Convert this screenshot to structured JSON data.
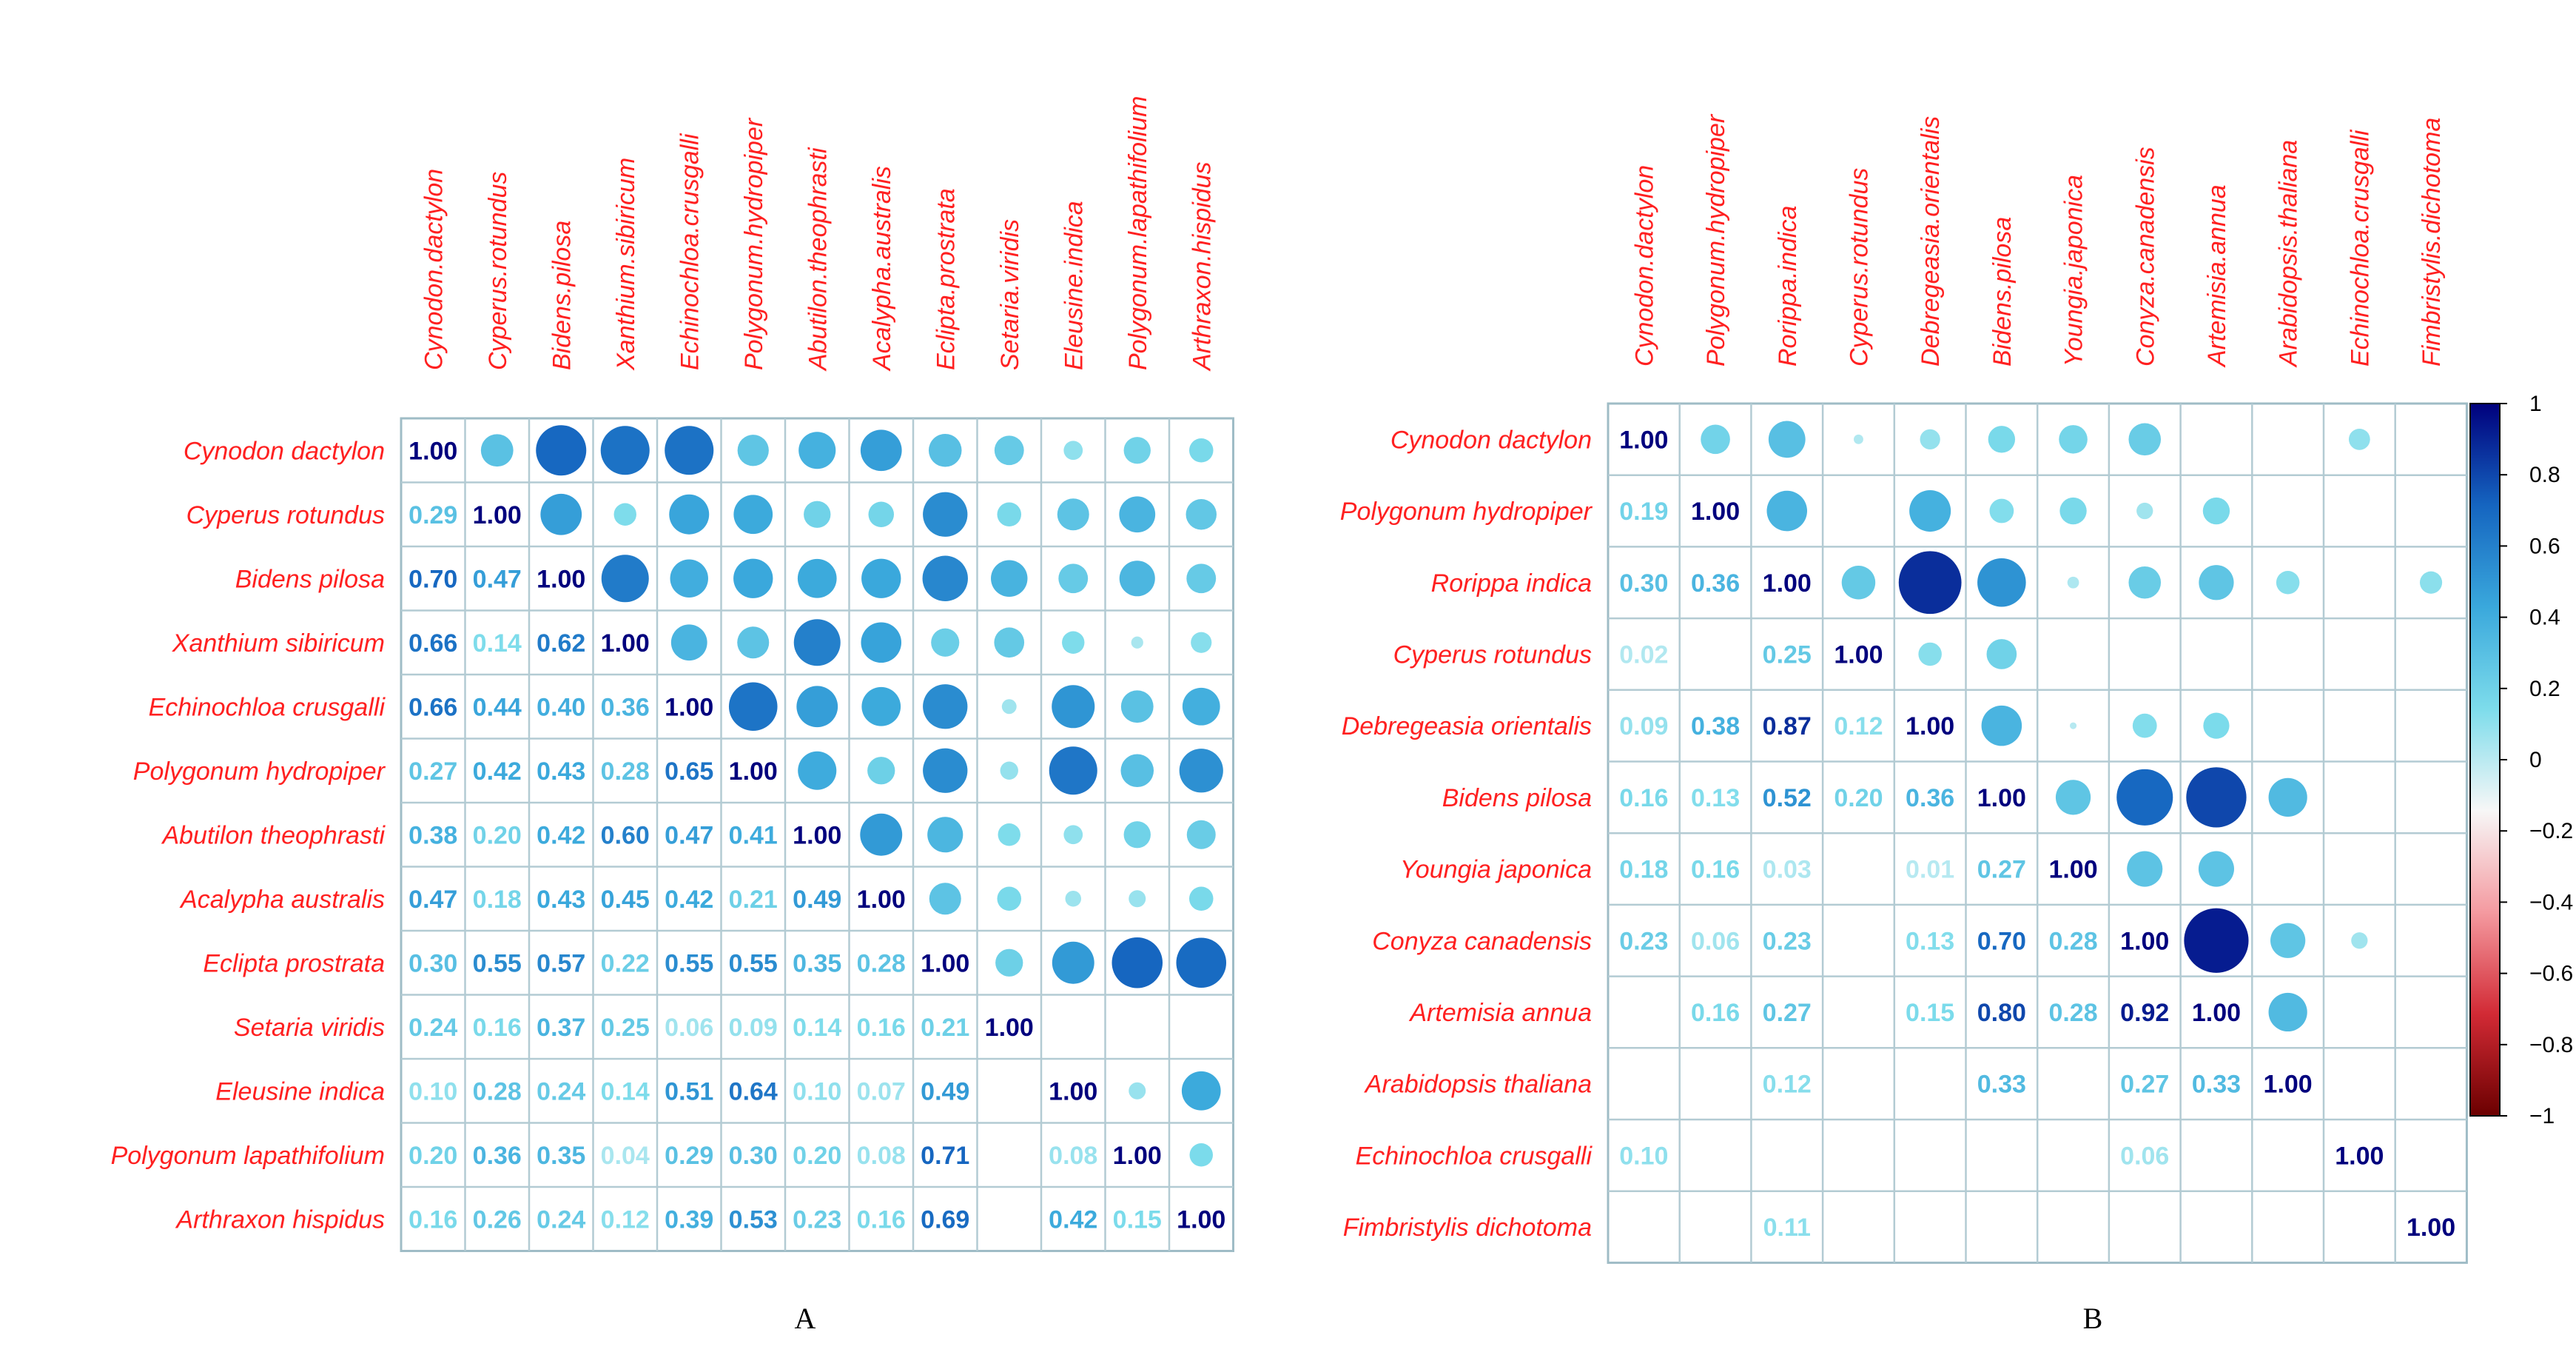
{
  "panels": [
    {
      "caption": "A",
      "labels_top": [
        "Cynodon.dactylon",
        "Cyperus.rotundus",
        "Bidens.pilosa",
        "Xanthium.sibiricum",
        "Echinochloa.crusgalli",
        "Polygonum.hydropiper",
        "Abutilon.theophrasti",
        "Acalypha.australis",
        "Eclipta.prostrata",
        "Setaria.viridis",
        "Eleusine.indica",
        "Polygonum.lapathifolium",
        "Arthraxon.hispidus"
      ],
      "labels_left": [
        "Cynodon dactylon",
        "Cyperus rotundus",
        "Bidens pilosa",
        "Xanthium sibiricum",
        "Echinochloa crusgalli",
        "Polygonum hydropiper",
        "Abutilon theophrasti",
        "Acalypha australis",
        "Eclipta prostrata",
        "Setaria viridis",
        "Eleusine indica",
        "Polygonum lapathifolium",
        "Arthraxon hispidus"
      ]
    },
    {
      "caption": "B",
      "labels_top": [
        "Cynodon.dactylon",
        "Polygonum.hydropiper",
        "Rorippa.indica",
        "Cyperus.rotundus",
        "Debregeasia.orientalis",
        "Bidens.pilosa",
        "Youngia.japonica",
        "Conyza.canadensis",
        "Artemisia.annua",
        "Arabidopsis.thaliana",
        "Echinochloa.crusgalli",
        "Fimbristylis.dichotoma"
      ],
      "labels_left": [
        "Cynodon dactylon",
        "Polygonum hydropiper",
        "Rorippa indica",
        "Cyperus rotundus",
        "Debregeasia orientalis",
        "Bidens pilosa",
        "Youngia japonica",
        "Conyza canadensis",
        "Artemisia annua",
        "Arabidopsis thaliana",
        "Echinochloa crusgalli",
        "Fimbristylis dichotoma"
      ]
    }
  ],
  "colorbar": {
    "ticks": [
      "1",
      "0.8",
      "0.6",
      "0.4",
      "0.2",
      "0",
      "−0.2",
      "−0.4",
      "−0.6",
      "−0.8",
      "−1"
    ],
    "colors": [
      "#00007d",
      "#1565c0",
      "#3aa8dc",
      "#7ddceb",
      "#f7f7f7",
      "#f49aa0",
      "#d22a35",
      "#6b0000"
    ]
  },
  "chart_data": [
    {
      "type": "heatmap",
      "title": "",
      "variables": [
        "Cynodon dactylon",
        "Cyperus rotundus",
        "Bidens pilosa",
        "Xanthium sibiricum",
        "Echinochloa crusgalli",
        "Polygonum hydropiper",
        "Abutilon theophrasti",
        "Acalypha australis",
        "Eclipta prostrata",
        "Setaria viridis",
        "Eleusine indica",
        "Polygonum lapathifolium",
        "Arthraxon hispidus"
      ],
      "lower_triangle_values": [
        [
          1.0
        ],
        [
          0.29,
          1.0
        ],
        [
          0.7,
          0.47,
          1.0
        ],
        [
          0.66,
          0.14,
          0.62,
          1.0
        ],
        [
          0.66,
          0.44,
          0.4,
          0.36,
          1.0
        ],
        [
          0.27,
          0.42,
          0.43,
          0.28,
          0.65,
          1.0
        ],
        [
          0.38,
          0.2,
          0.42,
          0.6,
          0.47,
          0.41,
          1.0
        ],
        [
          0.47,
          0.18,
          0.43,
          0.45,
          0.42,
          0.21,
          0.49,
          1.0
        ],
        [
          0.3,
          0.55,
          0.57,
          0.22,
          0.55,
          0.55,
          0.35,
          0.28,
          1.0
        ],
        [
          0.24,
          0.16,
          0.37,
          0.25,
          0.06,
          0.09,
          0.14,
          0.16,
          0.21,
          1.0
        ],
        [
          0.1,
          0.28,
          0.24,
          0.14,
          0.51,
          0.64,
          0.1,
          0.07,
          0.49,
          null,
          1.0
        ],
        [
          0.2,
          0.36,
          0.35,
          0.04,
          0.29,
          0.3,
          0.2,
          0.08,
          0.71,
          null,
          0.08,
          1.0
        ],
        [
          0.16,
          0.26,
          0.24,
          0.12,
          0.39,
          0.53,
          0.23,
          0.16,
          0.69,
          null,
          0.42,
          0.15,
          1.0
        ]
      ],
      "display": "lower: coefficients, upper: circles sized and colored by coefficient"
    },
    {
      "type": "heatmap",
      "title": "",
      "variables": [
        "Cynodon dactylon",
        "Polygonum hydropiper",
        "Rorippa indica",
        "Cyperus rotundus",
        "Debregeasia orientalis",
        "Bidens pilosa",
        "Youngia japonica",
        "Conyza canadensis",
        "Artemisia annua",
        "Arabidopsis thaliana",
        "Echinochloa crusgalli",
        "Fimbristylis dichotoma"
      ],
      "lower_triangle_values": [
        [
          1.0
        ],
        [
          0.19,
          1.0
        ],
        [
          0.3,
          0.36,
          1.0
        ],
        [
          0.02,
          null,
          0.25,
          1.0
        ],
        [
          0.09,
          0.38,
          0.87,
          0.12,
          1.0
        ],
        [
          0.16,
          0.13,
          0.52,
          0.2,
          0.36,
          1.0
        ],
        [
          0.18,
          0.16,
          0.03,
          null,
          0.01,
          0.27,
          1.0
        ],
        [
          0.23,
          0.06,
          0.23,
          null,
          0.13,
          0.7,
          0.28,
          1.0
        ],
        [
          null,
          0.16,
          0.27,
          null,
          0.15,
          0.8,
          0.28,
          0.92,
          1.0
        ],
        [
          null,
          null,
          0.12,
          null,
          null,
          0.33,
          null,
          0.27,
          0.33,
          1.0
        ],
        [
          0.1,
          null,
          null,
          null,
          null,
          null,
          null,
          0.06,
          null,
          null,
          1.0
        ],
        [
          null,
          null,
          0.11,
          null,
          null,
          null,
          null,
          null,
          null,
          null,
          null,
          1.0
        ]
      ],
      "color_scale": {
        "min": -1,
        "max": 1
      },
      "display": "lower: coefficients, upper: circles sized and colored by coefficient"
    }
  ]
}
